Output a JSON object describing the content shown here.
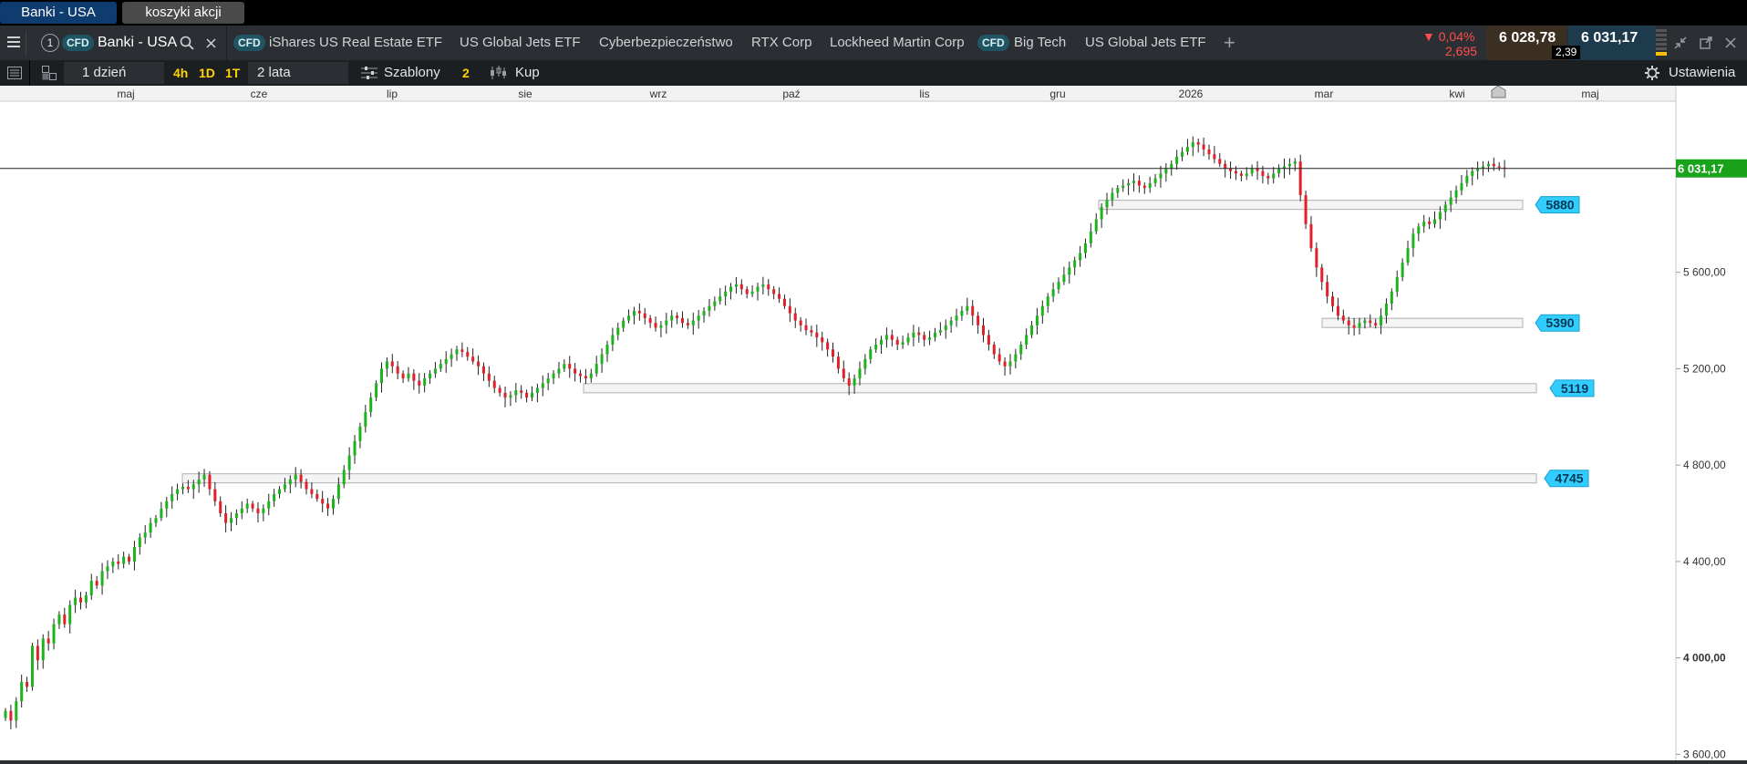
{
  "workspace_tabs": [
    {
      "label": "Banki - USA"
    },
    {
      "label": "koszyki akcji"
    }
  ],
  "instrument_bar": {
    "menu_icon": "hamburger-icon",
    "tab_number": "1",
    "cfd_badge": "CFD",
    "active_tab": "Banki - USA",
    "tabs": [
      {
        "label": "iShares US Real Estate ETF",
        "badge": "CFD"
      },
      {
        "label": "US Global Jets ETF"
      },
      {
        "label": "Cyberbezpieczeństwo"
      },
      {
        "label": "RTX Corp"
      },
      {
        "label": "Lockheed Martin Corp"
      },
      {
        "label": "Big Tech",
        "badge": "CFD"
      },
      {
        "label": "US Global Jets ETF"
      }
    ],
    "change_pct": "▼ 0,04%",
    "change_abs": "2,695",
    "bid": "6 028,78",
    "ask": "6 031,17",
    "spread": "2,39"
  },
  "toolbar": {
    "interval": "1 dzień",
    "quick_intervals": [
      "4h",
      "1D",
      "1T"
    ],
    "range": "2 lata",
    "templates": "Szablony",
    "count": "2",
    "buy": "Kup",
    "settings": "Ustawienia"
  },
  "colors": {
    "up": "#1db31d",
    "down": "#e0202a",
    "level": "#33ccff",
    "price_tag": "#1aa31a",
    "bg_dark": "#2b2f33"
  },
  "chart_data": {
    "type": "candlestick",
    "x_tick_labels": [
      "maj",
      "cze",
      "lip",
      "sie",
      "wrz",
      "paź",
      "lis",
      "gru",
      "2026",
      "mar",
      "kwi",
      "maj"
    ],
    "y_ticks": [
      3600,
      4000,
      4400,
      4800,
      5200,
      5600
    ],
    "y_tick_labels": [
      "3 600,00",
      "4 000,00",
      "4 400,00",
      "4 800,00",
      "5 200,00",
      "5 600,00"
    ],
    "ylim": [
      3590,
      6310
    ],
    "current_price": 6031.17,
    "current_price_label": "6 031,17",
    "levels": [
      {
        "value": 5880,
        "label": "5880"
      },
      {
        "value": 5390,
        "label": "5390"
      },
      {
        "value": 5119,
        "label": "5119"
      },
      {
        "value": 4745,
        "label": "4745"
      }
    ],
    "series": [
      {
        "name": "",
        "values": [
          3780,
          3740,
          3820,
          3900,
          3880,
          4050,
          3990,
          4080,
          4060,
          4140,
          4180,
          4140,
          4220,
          4250,
          4230,
          4260,
          4320,
          4300,
          4360,
          4380,
          4400,
          4390,
          4420,
          4400,
          4460,
          4500,
          4520,
          4560,
          4580,
          4620,
          4650,
          4680,
          4700,
          4710,
          4700,
          4720,
          4740,
          4760,
          4700,
          4650,
          4600,
          4560,
          4580,
          4600,
          4620,
          4640,
          4620,
          4600,
          4620,
          4650,
          4680,
          4700,
          4720,
          4740,
          4760,
          4730,
          4700,
          4680,
          4660,
          4640,
          4620,
          4660,
          4720,
          4780,
          4840,
          4900,
          4960,
          5020,
          5080,
          5140,
          5200,
          5230,
          5210,
          5180,
          5160,
          5180,
          5150,
          5130,
          5160,
          5180,
          5200,
          5220,
          5240,
          5260,
          5280,
          5270,
          5250,
          5230,
          5210,
          5180,
          5150,
          5120,
          5100,
          5080,
          5090,
          5110,
          5100,
          5080,
          5100,
          5120,
          5140,
          5160,
          5180,
          5200,
          5220,
          5200,
          5180,
          5170,
          5160,
          5180,
          5220,
          5260,
          5300,
          5340,
          5370,
          5400,
          5420,
          5440,
          5430,
          5410,
          5390,
          5370,
          5380,
          5400,
          5420,
          5410,
          5390,
          5380,
          5400,
          5420,
          5440,
          5460,
          5480,
          5500,
          5520,
          5540,
          5550,
          5530,
          5510,
          5520,
          5540,
          5550,
          5530,
          5510,
          5490,
          5460,
          5430,
          5400,
          5380,
          5360,
          5350,
          5330,
          5310,
          5280,
          5250,
          5200,
          5160,
          5130,
          5160,
          5200,
          5240,
          5280,
          5300,
          5320,
          5340,
          5320,
          5300,
          5310,
          5330,
          5350,
          5340,
          5320,
          5330,
          5350,
          5360,
          5380,
          5400,
          5420,
          5440,
          5460,
          5420,
          5380,
          5340,
          5300,
          5260,
          5230,
          5210,
          5230,
          5260,
          5300,
          5340,
          5380,
          5420,
          5460,
          5500,
          5530,
          5560,
          5590,
          5620,
          5650,
          5680,
          5720,
          5770,
          5820,
          5870,
          5900,
          5930,
          5950,
          5960,
          5970,
          5980,
          5960,
          5950,
          5970,
          5990,
          6010,
          6030,
          6050,
          6080,
          6100,
          6120,
          6140,
          6130,
          6110,
          6090,
          6070,
          6050,
          6030,
          6020,
          6010,
          6000,
          6010,
          6030,
          6020,
          6000,
          5990,
          6010,
          6030,
          6040,
          6050,
          6060,
          5920,
          5800,
          5700,
          5620,
          5560,
          5500,
          5460,
          5420,
          5400,
          5380,
          5370,
          5390,
          5400,
          5390,
          5380,
          5420,
          5470,
          5520,
          5580,
          5640,
          5700,
          5760,
          5790,
          5810,
          5800,
          5820,
          5850,
          5880,
          5910,
          5940,
          5970,
          6000,
          6020,
          6030,
          6040,
          6050,
          6040,
          6035,
          6031
        ]
      }
    ]
  }
}
